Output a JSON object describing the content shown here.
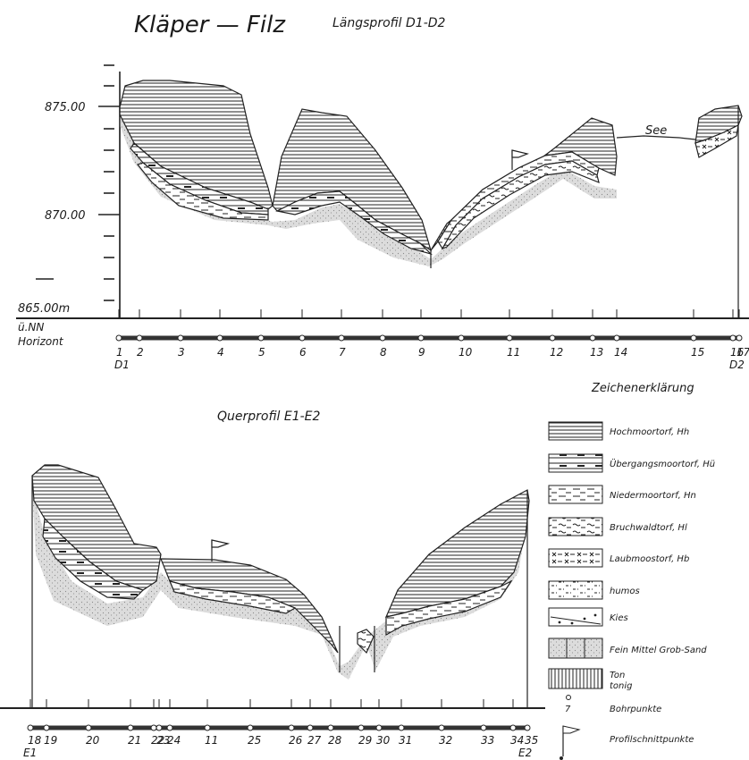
{
  "header": {
    "title": "Kläper — Filz",
    "subtitle_top": "Längsprofil D1-D2",
    "subtitle_bottom": "Querprofil E1-E2"
  },
  "top_profile": {
    "y_labels": [
      "875.00",
      "870.00",
      "865.00m"
    ],
    "unit_label": "ü.NN",
    "horizon_label": "Horizont",
    "lake_label": "See",
    "station_labels": [
      "1",
      "2",
      "3",
      "4",
      "5",
      "6",
      "7",
      "8",
      "9",
      "10",
      "11",
      "12",
      "13",
      "14",
      "15",
      "16",
      "17"
    ],
    "end_labels": [
      "D1",
      "D2"
    ]
  },
  "bottom_profile": {
    "station_labels": [
      "18",
      "19",
      "20",
      "21",
      "22",
      "23",
      "24",
      "11",
      "25",
      "26",
      "27",
      "28",
      "29",
      "30",
      "31",
      "32",
      "33",
      "34",
      "35"
    ],
    "end_labels": [
      "E1",
      "E2"
    ]
  },
  "legend": {
    "title": "Zeichenerklärung",
    "items": [
      {
        "key": "hh",
        "label": "Hochmoortorf, Hh"
      },
      {
        "key": "hu",
        "label": "Übergangsmoortorf, Hü"
      },
      {
        "key": "hn",
        "label": "Niedermoortorf, Hn"
      },
      {
        "key": "hl",
        "label": "Bruchwaldtorf, Hl"
      },
      {
        "key": "hb",
        "label": "Laubmoostorf, Hb"
      },
      {
        "key": "humos",
        "label": "humos"
      },
      {
        "key": "kies",
        "label": "Kies"
      },
      {
        "key": "sand",
        "label": "Fein Mittel Grob-Sand"
      },
      {
        "key": "ton",
        "label": "Ton"
      },
      {
        "key": "bohr",
        "label": "Bohrpunkte"
      },
      {
        "key": "profil",
        "label": "Profilschnittpunkte"
      }
    ],
    "ton_sub": "tonig",
    "bohr_symbol": "7"
  },
  "colors": {
    "ink": "#1a1a1a",
    "paper": "#ffffff",
    "sand": "#d9d9d9"
  }
}
